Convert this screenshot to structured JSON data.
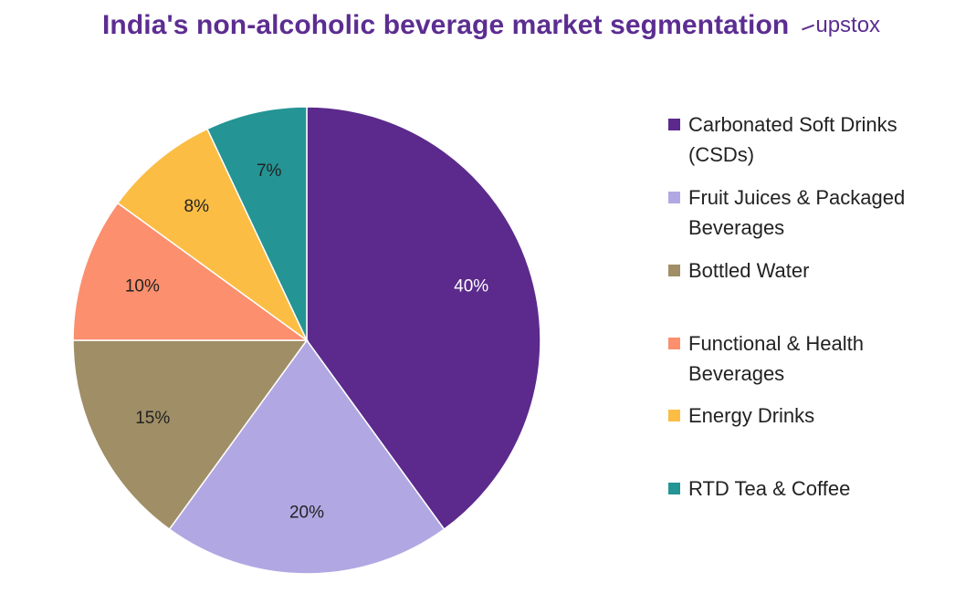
{
  "header": {
    "title": "India's non-alcoholic beverage market segmentation",
    "brand": "upstox"
  },
  "colors": {
    "title": "#5c2d91",
    "csd": "#5b2a8c",
    "juice": "#b1a8e3",
    "water": "#9f8e66",
    "functional": "#fb8f6e",
    "energy": "#fbbd43",
    "tea": "#249494"
  },
  "chart_data": {
    "type": "pie",
    "title": "India's non-alcoholic beverage market segmentation",
    "start_angle": "12 o'clock, clockwise",
    "legend_position": "right",
    "slices": [
      {
        "label": "Carbonated Soft Drinks (CSDs)",
        "value": 40,
        "data_label": "40%",
        "color": "#5b2a8c",
        "label_color": "#ffffff"
      },
      {
        "label": "Fruit Juices & Packaged Beverages",
        "value": 20,
        "data_label": "20%",
        "color": "#b1a8e3",
        "label_color": "#222222"
      },
      {
        "label": "Bottled Water",
        "value": 15,
        "data_label": "15%",
        "color": "#9f8e66",
        "label_color": "#222222"
      },
      {
        "label": "Functional & Health Beverages",
        "value": 10,
        "data_label": "10%",
        "color": "#fb8f6e",
        "label_color": "#222222"
      },
      {
        "label": "Energy Drinks",
        "value": 8,
        "data_label": "8%",
        "color": "#fbbd43",
        "label_color": "#222222"
      },
      {
        "label": "RTD Tea & Coffee",
        "value": 7,
        "data_label": "7%",
        "color": "#249494",
        "label_color": "#222222"
      }
    ]
  },
  "legend": {
    "items": [
      {
        "label": "Carbonated Soft Drinks (CSDs)",
        "color": "#5b2a8c"
      },
      {
        "label": "Fruit Juices & Packaged Beverages",
        "color": "#b1a8e3"
      },
      {
        "label": "Bottled Water",
        "color": "#9f8e66"
      },
      {
        "label": "Functional & Health Beverages",
        "color": "#fb8f6e"
      },
      {
        "label": "Energy Drinks",
        "color": "#fbbd43"
      },
      {
        "label": "RTD Tea & Coffee",
        "color": "#249494"
      }
    ]
  }
}
